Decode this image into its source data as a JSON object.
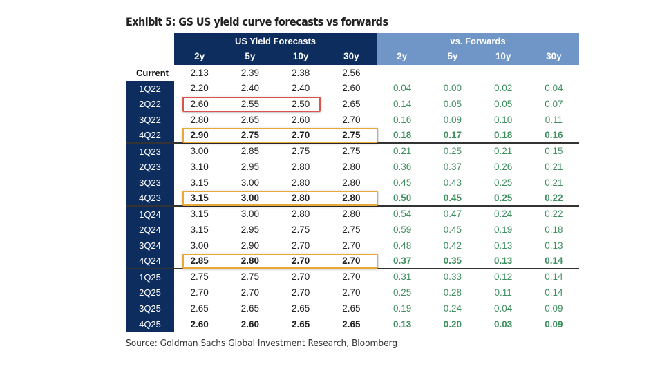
{
  "chart_data": {
    "type": "table",
    "title": "Exhibit 5: GS US yield curve forecasts vs forwards",
    "source": "Source: Goldman Sachs Global Investment Research, Bloomberg",
    "groups": [
      "US Yield Forecasts",
      "vs. Forwards"
    ],
    "columns": [
      "2y",
      "5y",
      "10y",
      "30y"
    ],
    "current": {
      "label": "Current",
      "values": [
        "2.13",
        "2.39",
        "2.38",
        "2.56"
      ]
    },
    "rows": [
      {
        "label": "1Q22",
        "forecasts": [
          "2.20",
          "2.40",
          "2.40",
          "2.60"
        ],
        "forwards": [
          "0.04",
          "0.00",
          "0.02",
          "0.04"
        ]
      },
      {
        "label": "2Q22",
        "forecasts": [
          "2.60",
          "2.55",
          "2.50",
          "2.65"
        ],
        "forwards": [
          "0.14",
          "0.05",
          "0.05",
          "0.07"
        ]
      },
      {
        "label": "3Q22",
        "forecasts": [
          "2.80",
          "2.65",
          "2.60",
          "2.70"
        ],
        "forwards": [
          "0.16",
          "0.09",
          "0.10",
          "0.11"
        ]
      },
      {
        "label": "4Q22",
        "forecasts": [
          "2.90",
          "2.75",
          "2.70",
          "2.75"
        ],
        "forwards": [
          "0.18",
          "0.17",
          "0.18",
          "0.16"
        ]
      },
      {
        "label": "1Q23",
        "forecasts": [
          "3.00",
          "2.85",
          "2.75",
          "2.75"
        ],
        "forwards": [
          "0.21",
          "0.25",
          "0.21",
          "0.15"
        ]
      },
      {
        "label": "2Q23",
        "forecasts": [
          "3.10",
          "2.95",
          "2.80",
          "2.80"
        ],
        "forwards": [
          "0.36",
          "0.37",
          "0.26",
          "0.21"
        ]
      },
      {
        "label": "3Q23",
        "forecasts": [
          "3.15",
          "3.00",
          "2.80",
          "2.80"
        ],
        "forwards": [
          "0.45",
          "0.43",
          "0.25",
          "0.21"
        ]
      },
      {
        "label": "4Q23",
        "forecasts": [
          "3.15",
          "3.00",
          "2.80",
          "2.80"
        ],
        "forwards": [
          "0.50",
          "0.45",
          "0.25",
          "0.22"
        ]
      },
      {
        "label": "1Q24",
        "forecasts": [
          "3.15",
          "3.00",
          "2.80",
          "2.80"
        ],
        "forwards": [
          "0.54",
          "0.47",
          "0.24",
          "0.22"
        ]
      },
      {
        "label": "2Q24",
        "forecasts": [
          "3.15",
          "2.95",
          "2.75",
          "2.75"
        ],
        "forwards": [
          "0.59",
          "0.45",
          "0.19",
          "0.18"
        ]
      },
      {
        "label": "3Q24",
        "forecasts": [
          "3.00",
          "2.90",
          "2.70",
          "2.70"
        ],
        "forwards": [
          "0.48",
          "0.42",
          "0.13",
          "0.13"
        ]
      },
      {
        "label": "4Q24",
        "forecasts": [
          "2.85",
          "2.80",
          "2.70",
          "2.70"
        ],
        "forwards": [
          "0.37",
          "0.35",
          "0.13",
          "0.14"
        ]
      },
      {
        "label": "1Q25",
        "forecasts": [
          "2.75",
          "2.75",
          "2.70",
          "2.70"
        ],
        "forwards": [
          "0.31",
          "0.33",
          "0.12",
          "0.14"
        ]
      },
      {
        "label": "2Q25",
        "forecasts": [
          "2.70",
          "2.70",
          "2.70",
          "2.70"
        ],
        "forwards": [
          "0.25",
          "0.28",
          "0.11",
          "0.14"
        ]
      },
      {
        "label": "3Q25",
        "forecasts": [
          "2.65",
          "2.65",
          "2.65",
          "2.65"
        ],
        "forwards": [
          "0.19",
          "0.24",
          "0.04",
          "0.09"
        ]
      },
      {
        "label": "4Q25",
        "forecasts": [
          "2.60",
          "2.60",
          "2.65",
          "2.65"
        ],
        "forwards": [
          "0.13",
          "0.20",
          "0.03",
          "0.09"
        ]
      }
    ],
    "bold_rows": [
      "4Q22",
      "4Q23",
      "4Q24",
      "4Q25"
    ],
    "highlights": [
      {
        "row": "2Q22",
        "columns": [
          "2y",
          "5y",
          "10y"
        ],
        "color": "#d9534f"
      },
      {
        "row": "4Q22",
        "color": "#e8a93a"
      },
      {
        "row": "4Q23",
        "color": "#e8a93a"
      },
      {
        "row": "4Q24",
        "color": "#e8a93a"
      }
    ],
    "colors": {
      "header_dark": "#0e2d5f",
      "header_light": "#7096c8",
      "forwards_text": "#3f8f5f"
    }
  }
}
